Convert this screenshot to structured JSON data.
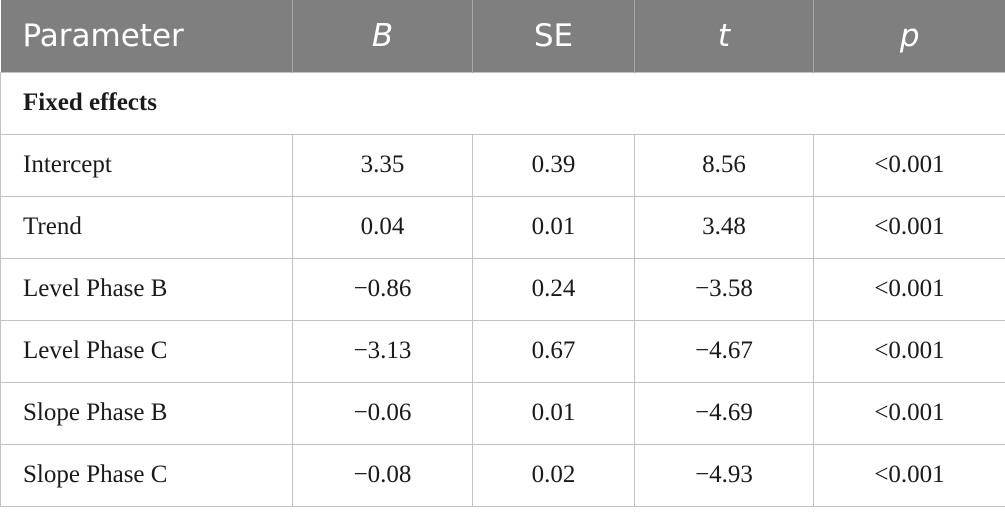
{
  "table": {
    "headers": [
      "Parameter",
      "B",
      "SE",
      "t",
      "p"
    ],
    "section_label": "Fixed effects",
    "rows": [
      [
        "Intercept",
        "3.35",
        "0.39",
        "8.56",
        "<0.001"
      ],
      [
        "Trend",
        "0.04",
        "0.01",
        "3.48",
        "<0.001"
      ],
      [
        "Level Phase B",
        "−0.86",
        "0.24",
        "−3.58",
        "<0.001"
      ],
      [
        "Level Phase C",
        "−3.13",
        "0.67",
        "−4.67",
        "<0.001"
      ],
      [
        "Slope Phase B",
        "−0.06",
        "0.01",
        "−4.69",
        "<0.001"
      ],
      [
        "Slope Phase C",
        "−0.08",
        "0.02",
        "−4.93",
        "<0.001"
      ]
    ]
  },
  "colors": {
    "header_bg": "#7f7f7f",
    "header_text": "#ffffff",
    "border": "#c2c2c2"
  }
}
